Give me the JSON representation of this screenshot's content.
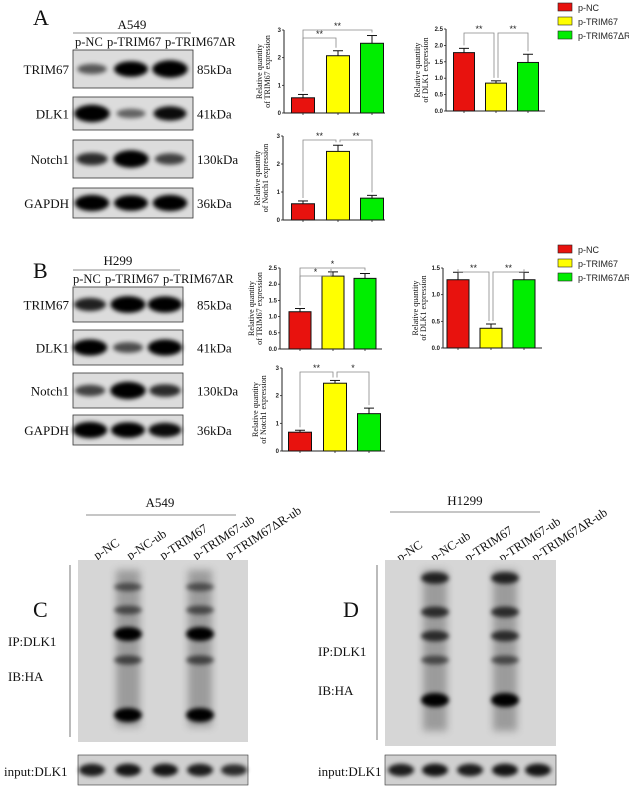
{
  "panels": {
    "A": {
      "letter": "A",
      "cell_line": "A549",
      "lanes": [
        "p-NC",
        "p-TRIM67",
        "p-TRIM67ΔR"
      ],
      "rows": [
        {
          "protein": "TRIM67",
          "kda": "85kDa",
          "bands": [
            0.35,
            0.8,
            0.95
          ]
        },
        {
          "protein": "DLK1",
          "kda": "41kDa",
          "bands": [
            0.95,
            0.3,
            0.7
          ]
        },
        {
          "protein": "Notch1",
          "kda": "130kDa",
          "bands": [
            0.55,
            0.95,
            0.45
          ]
        },
        {
          "protein": "GAPDH",
          "kda": "36kDa",
          "bands": [
            0.85,
            0.8,
            0.85
          ]
        }
      ]
    },
    "B": {
      "letter": "B",
      "cell_line": "H299",
      "lanes": [
        "p-NC",
        "p-TRIM67",
        "p-TRIM67ΔR"
      ],
      "rows": [
        {
          "protein": "TRIM67",
          "kda": "85kDa",
          "bands": [
            0.6,
            0.9,
            0.85
          ]
        },
        {
          "protein": "DLK1",
          "kda": "41kDa",
          "bands": [
            0.85,
            0.4,
            0.85
          ]
        },
        {
          "protein": "Notch1",
          "kda": "130kDa",
          "bands": [
            0.45,
            0.95,
            0.55
          ]
        },
        {
          "protein": "GAPDH",
          "kda": "36kDa",
          "bands": [
            0.85,
            0.8,
            0.7
          ]
        }
      ]
    },
    "C": {
      "letter": "C",
      "cell_line": "A549",
      "lanes": [
        "p-NC",
        "p-NC-ub",
        "p-TRIM67",
        "p-TRIM67-ub",
        "p-TRIM67ΔR-ub"
      ],
      "ip_label": "IP:DLK1",
      "ib_label": "IB:HA",
      "input_label": "input:DLK1",
      "input_bands": [
        0.8,
        0.85,
        0.85,
        0.8,
        0.7
      ]
    },
    "D": {
      "letter": "D",
      "cell_line": "H1299",
      "lanes": [
        "p-NC",
        "p-NC-ub",
        "p-TRIM67",
        "p-TRIM67-ub",
        "p-TRIM67ΔR-ub"
      ],
      "ip_label": "IP:DLK1",
      "ib_label": "IB:HA",
      "input_label": "input:DLK1",
      "input_bands": [
        0.8,
        0.85,
        0.8,
        0.85,
        0.85
      ]
    }
  },
  "legend": {
    "items": [
      {
        "label": "p-NC",
        "color": "#e8120e"
      },
      {
        "label": "p-TRIM67",
        "color": "#ffff00"
      },
      {
        "label": "p-TRIM67ΔR",
        "color": "#00ee00"
      }
    ]
  },
  "chart_data": [
    {
      "id": "A_trim67",
      "type": "bar",
      "ylabel": [
        "Relative quantity",
        "of TRIM67 expression"
      ],
      "categories": [
        "p-NC",
        "p-TRIM67",
        "p-TRIM67ΔR"
      ],
      "values": [
        0.55,
        2.07,
        2.52
      ],
      "errors": [
        0.12,
        0.18,
        0.28
      ],
      "ylim": [
        0,
        3
      ],
      "yticks": [
        0,
        1,
        2,
        3
      ],
      "ytick_labels": [
        "0",
        "1",
        "2",
        "3"
      ],
      "significance": [
        {
          "from": 0,
          "to": 1,
          "label": "**"
        },
        {
          "from": 0,
          "to": 2,
          "label": "**"
        }
      ]
    },
    {
      "id": "A_dlk1",
      "type": "bar",
      "ylabel": [
        "Relative quantity",
        "of DLK1 expression"
      ],
      "categories": [
        "p-NC",
        "p-TRIM67",
        "p-TRIM67ΔR"
      ],
      "values": [
        1.78,
        0.85,
        1.48
      ],
      "errors": [
        0.13,
        0.07,
        0.25
      ],
      "ylim": [
        0,
        2.5
      ],
      "yticks": [
        0,
        0.5,
        1,
        1.5,
        2,
        2.5
      ],
      "ytick_labels": [
        "0.0",
        "0.5",
        "1.0",
        "1.5",
        "2.0",
        "2.5"
      ],
      "significance": [
        {
          "from": 0,
          "to": 1,
          "label": "**"
        },
        {
          "from": 1,
          "to": 2,
          "label": "**"
        }
      ]
    },
    {
      "id": "A_notch1",
      "type": "bar",
      "ylabel": [
        "Relative quantity",
        "of Notch1 expression"
      ],
      "categories": [
        "p-NC",
        "p-TRIM67",
        "p-TRIM67ΔR"
      ],
      "values": [
        0.58,
        2.45,
        0.78
      ],
      "errors": [
        0.1,
        0.22,
        0.1
      ],
      "ylim": [
        0,
        3
      ],
      "yticks": [
        0,
        1,
        2,
        3
      ],
      "ytick_labels": [
        "0",
        "1",
        "2",
        "3"
      ],
      "significance": [
        {
          "from": 0,
          "to": 1,
          "label": "**"
        },
        {
          "from": 1,
          "to": 2,
          "label": "**"
        }
      ]
    },
    {
      "id": "B_trim67",
      "type": "bar",
      "ylabel": [
        "Relative quantity",
        "of TRIM67 expression"
      ],
      "categories": [
        "p-NC",
        "p-TRIM67",
        "p-TRIM67ΔR"
      ],
      "values": [
        1.15,
        2.25,
        2.18
      ],
      "errors": [
        0.1,
        0.13,
        0.15
      ],
      "ylim": [
        0,
        2.5
      ],
      "yticks": [
        0,
        0.5,
        1,
        1.5,
        2,
        2.5
      ],
      "ytick_labels": [
        "0.0",
        "0.5",
        "1.0",
        "1.5",
        "2.0",
        "2.5"
      ],
      "significance": [
        {
          "from": 0,
          "to": 1,
          "label": "*"
        },
        {
          "from": 0,
          "to": 2,
          "label": "*"
        }
      ]
    },
    {
      "id": "B_dlk1",
      "type": "bar",
      "ylabel": [
        "Relative quantity",
        "of DLK1 expression"
      ],
      "categories": [
        "p-NC",
        "p-TRIM67",
        "p-TRIM67ΔR"
      ],
      "values": [
        1.28,
        0.37,
        1.28
      ],
      "errors": [
        0.14,
        0.08,
        0.14
      ],
      "ylim": [
        0,
        1.5
      ],
      "yticks": [
        0,
        0.5,
        1,
        1.5
      ],
      "ytick_labels": [
        "0.0",
        "0.5",
        "1.0",
        "1.5"
      ],
      "significance": [
        {
          "from": 0,
          "to": 1,
          "label": "**"
        },
        {
          "from": 1,
          "to": 2,
          "label": "**"
        }
      ]
    },
    {
      "id": "B_notch1",
      "type": "bar",
      "ylabel": [
        "Relative quantity",
        "of Notch1 expression"
      ],
      "categories": [
        "p-NC",
        "p-TRIM67",
        "p-TRIM67ΔR"
      ],
      "values": [
        0.68,
        2.45,
        1.35
      ],
      "errors": [
        0.07,
        0.1,
        0.2
      ],
      "ylim": [
        0,
        3
      ],
      "yticks": [
        0,
        1,
        2,
        3
      ],
      "ytick_labels": [
        "0",
        "1",
        "2",
        "3"
      ],
      "significance": [
        {
          "from": 0,
          "to": 1,
          "label": "**"
        },
        {
          "from": 1,
          "to": 2,
          "label": "*"
        }
      ]
    }
  ]
}
